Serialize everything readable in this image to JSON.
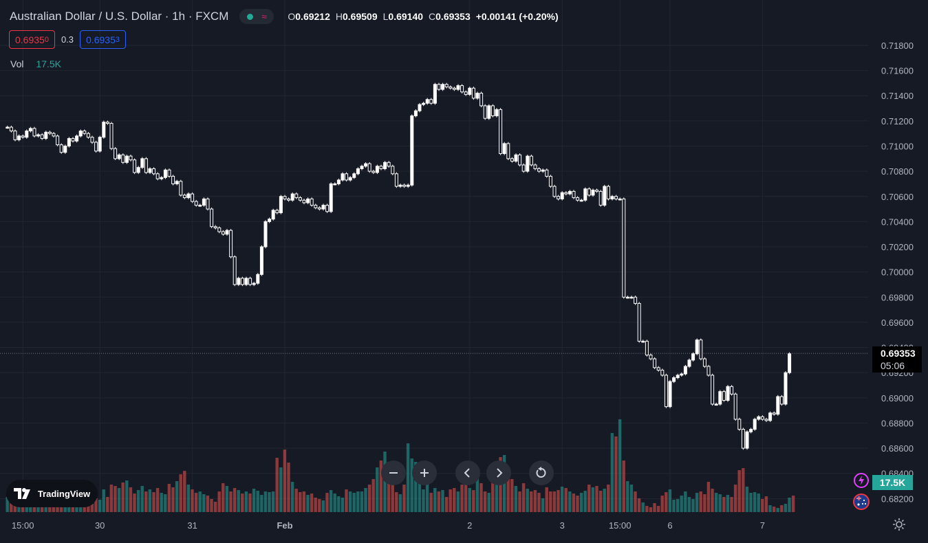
{
  "header": {
    "title": "Australian Dollar / U.S. Dollar · 1h · FXCM",
    "open_label": "O",
    "open": "0.69212",
    "high_label": "H",
    "high": "0.69509",
    "low_label": "L",
    "low": "0.69140",
    "close_label": "C",
    "close": "0.69353",
    "change": "+0.00141 (+0.20%)",
    "market_status_color": "#22ab94",
    "data_wave_color": "#e91e63"
  },
  "trade": {
    "sell_main": "0.6935",
    "sell_small": "0",
    "spread": "0.3",
    "buy_main": "0.6935",
    "buy_small": "3"
  },
  "volume_legend": {
    "label": "Vol",
    "value": "17.5K"
  },
  "price_tag": {
    "price": "0.69353",
    "countdown": "05:06"
  },
  "volume_tag": "17.5K",
  "branding": {
    "logo_text": "TradingView"
  },
  "nav": {
    "zoom_out": "−",
    "zoom_in": "+",
    "prev": "‹",
    "next": "›",
    "reset": "↺"
  },
  "icons": [
    "tradingview-logo-icon",
    "zoom-out-icon",
    "zoom-in-icon",
    "chevron-left-icon",
    "chevron-right-icon",
    "reset-icon",
    "lightning-icon",
    "australia-flag-icon",
    "gear-icon"
  ],
  "colors": {
    "background": "#161a25",
    "up_volume": "#26a69a",
    "down_volume": "#ef5350",
    "candle": "#ffffff",
    "grid": "#222631",
    "sell": "#f23645",
    "buy": "#2962ff"
  },
  "chart_data": {
    "type": "candlestick",
    "symbol": "AUDUSD",
    "interval": "1h",
    "y_ticks": [
      0.718,
      0.716,
      0.714,
      0.712,
      0.71,
      0.708,
      0.706,
      0.704,
      0.702,
      0.7,
      0.698,
      0.696,
      0.694,
      0.692,
      0.69,
      0.688,
      0.686,
      0.684,
      0.682
    ],
    "y_tick_labels": [
      "0.71800",
      "0.71600",
      "0.71400",
      "0.71200",
      "0.71000",
      "0.70800",
      "0.70600",
      "0.70400",
      "0.70200",
      "0.70000",
      "0.69800",
      "0.69600",
      "0.69400",
      "0.69200",
      "0.69000",
      "0.68800",
      "0.68600",
      "0.68400",
      "0.68200"
    ],
    "ylim": [
      0.6812,
      0.7198
    ],
    "x_labels": [
      {
        "label": "15:00",
        "bar": 4
      },
      {
        "label": "30",
        "bar": 24
      },
      {
        "label": "31",
        "bar": 48
      },
      {
        "label": "Feb",
        "bar": 72
      },
      {
        "label": "2",
        "bar": 120
      },
      {
        "label": "3",
        "bar": 144
      },
      {
        "label": "15:00",
        "bar": 159
      },
      {
        "label": "6",
        "bar": 172
      },
      {
        "label": "7",
        "bar": 196
      }
    ],
    "current_price": 0.69353,
    "closes": [
      0.7115,
      0.7112,
      0.7105,
      0.7108,
      0.7107,
      0.7112,
      0.7114,
      0.7108,
      0.7109,
      0.7106,
      0.7111,
      0.711,
      0.7108,
      0.7101,
      0.7095,
      0.71,
      0.7106,
      0.7104,
      0.7108,
      0.7112,
      0.711,
      0.7107,
      0.7103,
      0.7096,
      0.7107,
      0.7119,
      0.7118,
      0.7098,
      0.709,
      0.7093,
      0.7087,
      0.7092,
      0.7089,
      0.7079,
      0.7083,
      0.709,
      0.7079,
      0.7082,
      0.7078,
      0.7074,
      0.7075,
      0.7081,
      0.7076,
      0.707,
      0.7072,
      0.7061,
      0.7059,
      0.7062,
      0.7056,
      0.7053,
      0.7053,
      0.7058,
      0.705,
      0.7036,
      0.7035,
      0.7032,
      0.703,
      0.7033,
      0.7012,
      0.699,
      0.6995,
      0.699,
      0.6995,
      0.699,
      0.6991,
      0.6998,
      0.702,
      0.704,
      0.7042,
      0.7049,
      0.7047,
      0.706,
      0.7058,
      0.7057,
      0.7062,
      0.7059,
      0.7057,
      0.7055,
      0.7058,
      0.7053,
      0.7051,
      0.705,
      0.7053,
      0.7048,
      0.707,
      0.707,
      0.7073,
      0.7078,
      0.7073,
      0.7075,
      0.7078,
      0.7082,
      0.7084,
      0.7086,
      0.708,
      0.7079,
      0.7084,
      0.7082,
      0.7087,
      0.7084,
      0.7078,
      0.7068,
      0.7069,
      0.7068,
      0.7069,
      0.7124,
      0.7128,
      0.7133,
      0.7134,
      0.7137,
      0.7134,
      0.7149,
      0.7145,
      0.7149,
      0.7147,
      0.7146,
      0.7145,
      0.7148,
      0.7143,
      0.7141,
      0.7146,
      0.7138,
      0.7142,
      0.7132,
      0.7122,
      0.7132,
      0.7124,
      0.7129,
      0.7094,
      0.7102,
      0.709,
      0.7088,
      0.7093,
      0.7085,
      0.708,
      0.7092,
      0.7085,
      0.7082,
      0.708,
      0.7081,
      0.7076,
      0.7068,
      0.706,
      0.7058,
      0.7063,
      0.7062,
      0.7064,
      0.7059,
      0.7057,
      0.7057,
      0.7066,
      0.7061,
      0.7065,
      0.7064,
      0.7053,
      0.7068,
      0.7058,
      0.706,
      0.7058,
      0.7058,
      0.698,
      0.698,
      0.698,
      0.6975,
      0.6945,
      0.6945,
      0.6934,
      0.6931,
      0.6924,
      0.6922,
      0.6918,
      0.6893,
      0.6913,
      0.6916,
      0.6918,
      0.6919,
      0.6925,
      0.693,
      0.6935,
      0.6946,
      0.6931,
      0.6925,
      0.6918,
      0.6895,
      0.6895,
      0.6905,
      0.6898,
      0.6909,
      0.6903,
      0.6883,
      0.6875,
      0.686,
      0.6873,
      0.6875,
      0.6883,
      0.6885,
      0.6883,
      0.6882,
      0.6888,
      0.6887,
      0.6901,
      0.6895,
      0.692,
      0.6935
    ],
    "volume_unit": "relative",
    "volumes": [
      0.22,
      0.18,
      0.2,
      0.16,
      0.24,
      0.14,
      0.26,
      0.21,
      0.17,
      0.25,
      0.19,
      0.22,
      0.3,
      0.35,
      0.24,
      0.2,
      0.18,
      0.16,
      0.22,
      0.27,
      0.19,
      0.15,
      0.12,
      0.2,
      0.18,
      0.33,
      0.22,
      0.4,
      0.38,
      0.35,
      0.43,
      0.46,
      0.36,
      0.27,
      0.32,
      0.38,
      0.3,
      0.33,
      0.29,
      0.35,
      0.28,
      0.26,
      0.41,
      0.36,
      0.45,
      0.55,
      0.6,
      0.4,
      0.33,
      0.28,
      0.3,
      0.26,
      0.24,
      0.19,
      0.15,
      0.3,
      0.42,
      0.38,
      0.3,
      0.35,
      0.32,
      0.27,
      0.3,
      0.27,
      0.34,
      0.31,
      0.25,
      0.3,
      0.29,
      0.3,
      0.79,
      0.65,
      0.91,
      0.72,
      0.44,
      0.34,
      0.29,
      0.3,
      0.25,
      0.27,
      0.21,
      0.19,
      0.17,
      0.28,
      0.32,
      0.27,
      0.23,
      0.21,
      0.33,
      0.3,
      0.28,
      0.3,
      0.3,
      0.35,
      0.4,
      0.48,
      0.65,
      0.75,
      0.88,
      0.73,
      0.55,
      0.29,
      0.26,
      0.4,
      1.0,
      0.78,
      0.73,
      0.54,
      0.33,
      0.4,
      0.28,
      0.35,
      0.3,
      0.32,
      0.22,
      0.33,
      0.35,
      0.3,
      0.4,
      0.44,
      0.35,
      0.32,
      0.49,
      0.42,
      0.3,
      0.28,
      0.44,
      0.53,
      0.8,
      0.83,
      0.6,
      0.48,
      0.38,
      0.3,
      0.42,
      0.34,
      0.3,
      0.32,
      0.28,
      0.2,
      0.36,
      0.3,
      0.3,
      0.32,
      0.37,
      0.35,
      0.3,
      0.27,
      0.24,
      0.28,
      0.31,
      0.4,
      0.36,
      0.38,
      0.31,
      0.34,
      0.4,
      1.15,
      1.1,
      1.35,
      0.75,
      0.45,
      0.4,
      0.3,
      0.2,
      0.14,
      0.09,
      0.07,
      0.13,
      0.09,
      0.24,
      0.29,
      0.33,
      0.18,
      0.19,
      0.24,
      0.3,
      0.22,
      0.19,
      0.28,
      0.3,
      0.26,
      0.44,
      0.34,
      0.28,
      0.26,
      0.22,
      0.25,
      0.22,
      0.4,
      0.61,
      0.64,
      0.37,
      0.28,
      0.29,
      0.27,
      0.19,
      0.23,
      0.1,
      0.08,
      0.06,
      0.1,
      0.12,
      0.21,
      0.24
    ]
  }
}
